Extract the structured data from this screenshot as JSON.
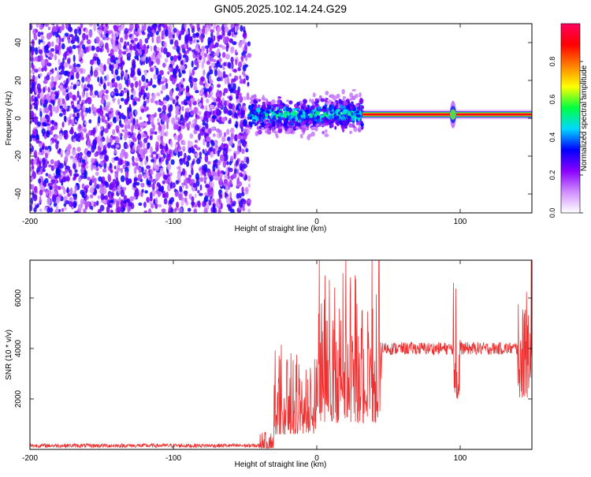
{
  "title": "GN05.2025.102.14.24.G29",
  "chart_data": [
    {
      "type": "heatmap",
      "xlabel": "Height of straight line (km)",
      "ylabel": "Frequency (Hz)",
      "xlim": [
        -200,
        150
      ],
      "ylim": [
        -50,
        50
      ],
      "x_ticks": [
        "-200",
        "-100",
        "0",
        "100"
      ],
      "x_tick_values": [
        -200,
        -100,
        0,
        100
      ],
      "y_ticks": [
        "-40",
        "-20",
        "0",
        "20",
        "40"
      ],
      "y_tick_values": [
        -40,
        -20,
        0,
        20,
        40
      ],
      "colorbar": {
        "label": "Normalized spectral amplitude",
        "range": [
          0,
          1
        ],
        "ticks": [
          "0.0",
          "0.2",
          "0.4",
          "0.6",
          "0.8"
        ],
        "tick_values": [
          0,
          0.2,
          0.4,
          0.6,
          0.8
        ],
        "colors": [
          "#ffffff",
          "#d08cff",
          "#8a00ff",
          "#0000ff",
          "#00d8ff",
          "#00ff40",
          "#ffff00",
          "#ff8000",
          "#ff0000",
          "#ff0060"
        ]
      },
      "regions": [
        {
          "x": [
            -200,
            -47
          ],
          "pattern": "noise",
          "amplitude": 0.15
        },
        {
          "x": [
            -47,
            32
          ],
          "pattern": "broadband",
          "center_freq": 2,
          "spread": 8,
          "amplitude": 0.45
        },
        {
          "x": [
            32,
            150
          ],
          "pattern": "tone",
          "center_freq": 2,
          "amplitude": 1.0
        }
      ]
    },
    {
      "type": "line",
      "xlabel": "Height of straight line (km)",
      "ylabel": "SNR (10 * v/v)",
      "xlim": [
        -200,
        150
      ],
      "ylim": [
        0,
        7500
      ],
      "color": "#f03030",
      "x_ticks": [
        "-200",
        "-100",
        "0",
        "100"
      ],
      "x_tick_values": [
        -200,
        -100,
        0,
        100
      ],
      "y_ticks": [
        "2000",
        "4000",
        "6000"
      ],
      "y_tick_values": [
        2000,
        4000,
        6000
      ],
      "segments": [
        {
          "x": [
            -200,
            -40
          ],
          "level": 150,
          "noise": 80
        },
        {
          "x": [
            -40,
            -30
          ],
          "level": 300,
          "noise": 400
        },
        {
          "x": [
            -30,
            0
          ],
          "level": 1600,
          "noise": 2000
        },
        {
          "x": [
            0,
            45
          ],
          "level": 2800,
          "noise": 3500
        },
        {
          "x": [
            45,
            95
          ],
          "level": 4000,
          "noise": 250
        },
        {
          "x": [
            95,
            100
          ],
          "level": 3500,
          "noise": 3000
        },
        {
          "x": [
            100,
            140
          ],
          "level": 4000,
          "noise": 250
        },
        {
          "x": [
            140,
            150
          ],
          "level": 3500,
          "noise": 3000
        }
      ]
    }
  ]
}
